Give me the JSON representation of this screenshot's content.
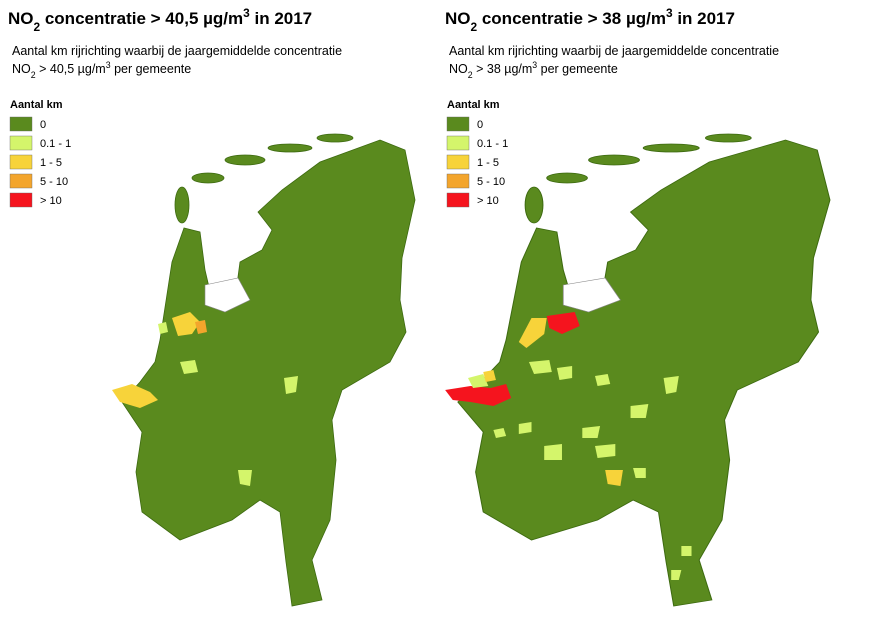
{
  "panels": [
    {
      "title": [
        "NO",
        "2",
        " concentratie > 40,5 µg/m",
        "3",
        " in 2017"
      ],
      "subtitle_line1": "Aantal km rijrichting waarbij de jaargemiddelde concentratie",
      "subtitle_line2": [
        "NO",
        "2",
        " > 40,5 µg/m",
        "3",
        " per gemeente"
      ]
    },
    {
      "title": [
        "NO",
        "2",
        " concentratie > 38 µg/m",
        "3",
        " in 2017"
      ],
      "subtitle_line1": "Aantal km rijrichting waarbij de jaargemiddelde concentratie",
      "subtitle_line2": [
        "NO",
        "2",
        " > 38 µg/m",
        "3",
        " per gemeente"
      ]
    }
  ],
  "legend": {
    "title": "Aantal km",
    "items": [
      {
        "label": "0",
        "color": "#5a8a1e"
      },
      {
        "label": "0.1 - 1",
        "color": "#d4f56b"
      },
      {
        "label": "1 - 5",
        "color": "#f7d33a"
      },
      {
        "label": "5 - 10",
        "color": "#f3a52c"
      },
      {
        "label": "> 10",
        "color": "#f5141e"
      }
    ]
  }
}
